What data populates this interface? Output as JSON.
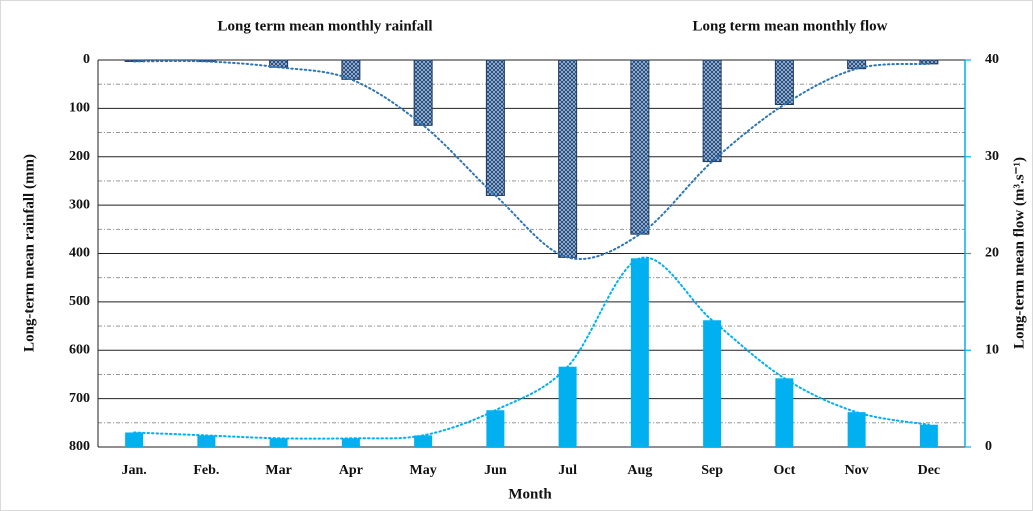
{
  "chart_data": {
    "type": "bar",
    "xlabel": "Month",
    "ylabel": "Long-term mean  rainfall (mm)",
    "y2label": "Long-term mean flow (m³.s⁻¹)",
    "categories": [
      "Jan.",
      "Feb.",
      "Mar",
      "Apr",
      "May",
      "Jun",
      "Jul",
      "Aug",
      "Sep",
      "Oct",
      "Nov",
      "Dec"
    ],
    "series": [
      {
        "name": "Long term mean monthly rainfall",
        "color": "#2e75b6",
        "values": [
          3,
          3,
          15,
          40,
          135,
          280,
          408,
          360,
          210,
          92,
          18,
          8
        ]
      },
      {
        "name": "Long term mean monthly flow",
        "color": "#00b0f0",
        "axis": "y2",
        "values": [
          1.5,
          1.2,
          0.9,
          0.9,
          1.2,
          3.8,
          8.3,
          19.5,
          13.1,
          7.1,
          3.6,
          2.3
        ]
      }
    ],
    "ylim": [
      0,
      800
    ],
    "yticks": [
      0,
      100,
      200,
      300,
      400,
      500,
      600,
      700,
      800
    ],
    "y_inverted": true,
    "y2lim": [
      0,
      40
    ],
    "y2ticks": [
      0,
      10,
      20,
      30,
      40
    ],
    "grid": true
  }
}
